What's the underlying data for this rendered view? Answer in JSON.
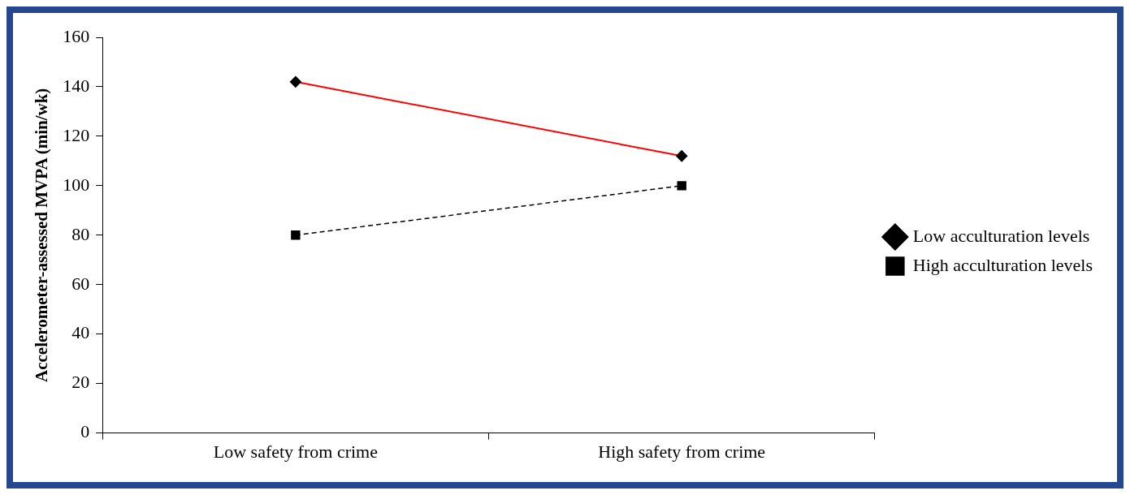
{
  "chart_data": {
    "type": "line",
    "ylabel": "Accelerometer-assessed MVPA (min/wk)",
    "categories": [
      "Low safety from crime",
      "High safety from crime"
    ],
    "series": [
      {
        "name": "Low acculturation levels",
        "color": "#ff0000",
        "values": [
          142,
          112
        ],
        "marker": "diamond",
        "line_style": "solid"
      },
      {
        "name": "High acculturation levels",
        "color": "#000000",
        "values": [
          80,
          100
        ],
        "marker": "square",
        "line_style": "dashed"
      }
    ],
    "ylim": [
      0,
      160
    ],
    "yticks": [
      0,
      20,
      40,
      60,
      80,
      100,
      120,
      140,
      160
    ],
    "grid": false,
    "legend": "right"
  }
}
